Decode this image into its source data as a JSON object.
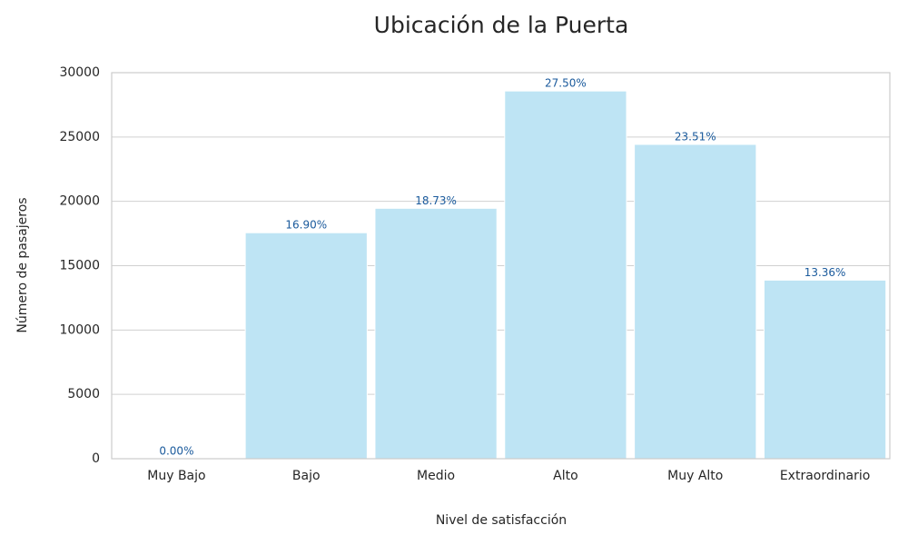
{
  "chart_data": {
    "type": "bar",
    "title": "Ubicación de la Puerta",
    "x_label": "Nivel de satisfacción",
    "y_label": "Número de pasajeros",
    "categories": [
      "Muy Bajo",
      "Bajo",
      "Medio",
      "Alto",
      "Muy Alto",
      "Extraordinario"
    ],
    "values": [
      1,
      17562,
      19459,
      28577,
      24426,
      13879
    ],
    "percent_labels": [
      "0.00%",
      "16.90%",
      "18.73%",
      "27.50%",
      "23.51%",
      "13.36%"
    ],
    "color": "#bee4f4",
    "label_color": "#1a5a9c",
    "ylim": [
      0,
      30000
    ],
    "yticks": [
      0,
      5000,
      10000,
      15000,
      20000,
      25000,
      30000
    ],
    "grid": true
  }
}
